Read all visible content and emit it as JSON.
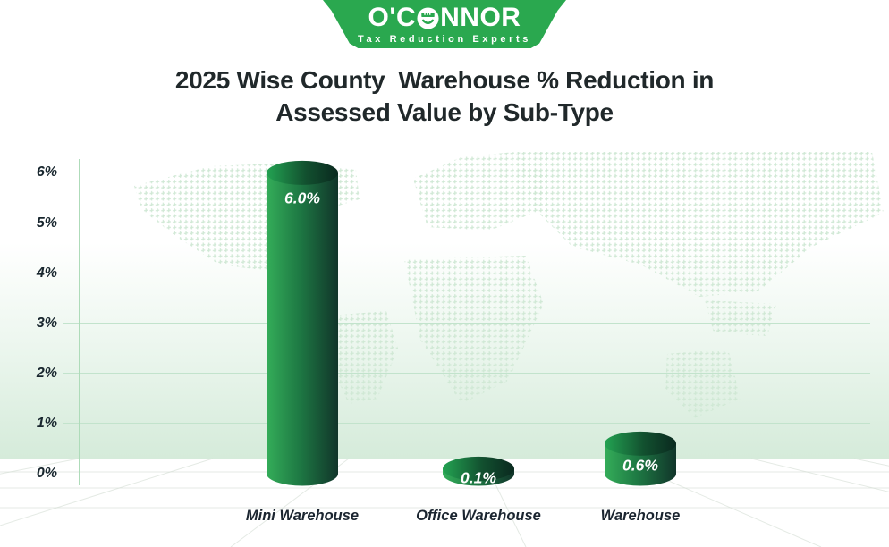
{
  "logo": {
    "name_pre": "O'C",
    "name_post": "NNOR",
    "o_icon": "ruler-smile-o-icon",
    "tagline": "Tax Reduction Experts",
    "brand_green": "#2aa84f"
  },
  "title": "2025 Wise County  Warehouse % Reduction in\nAssessed Value by Sub-Type",
  "chart_data": {
    "type": "bar",
    "style": "3d-cylinder",
    "title": "2025 Wise County  Warehouse % Reduction in Assessed Value by Sub-Type",
    "categories": [
      "Mini Warehouse",
      "Office Warehouse",
      "Warehouse"
    ],
    "values": [
      6.0,
      0.1,
      0.6
    ],
    "value_labels": [
      "6.0%",
      "0.1%",
      "0.6%"
    ],
    "xlabel": "",
    "ylabel": "",
    "ylim": [
      0,
      6
    ],
    "yticks": [
      "0%",
      "1%",
      "2%",
      "3%",
      "4%",
      "5%",
      "6%"
    ],
    "grid": true,
    "legend": false,
    "background": "dotted world map over green gradient with perspective floor",
    "colors": {
      "bar_body_light": "#34ad59",
      "bar_body_mid": "#1e7a44",
      "bar_body_dark": "#11352a",
      "bar_top_light": "#23a352",
      "bar_top_mid": "#12502f",
      "bar_top_dark": "#0a291f",
      "gridline": "#c2e3cc",
      "axis_line": "#aedbb9",
      "tick_label": "#18262e",
      "value_label": "#ffffff",
      "map_dots": "#cfe8d4",
      "bg_tint": "#d5ebda",
      "title_text": "#20282a"
    }
  }
}
